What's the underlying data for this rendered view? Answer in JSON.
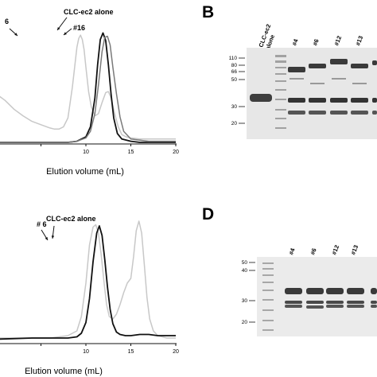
{
  "panels": {
    "A": {
      "letter": ""
    },
    "B": {
      "letter": "B"
    },
    "C": {
      "letter": ""
    },
    "D": {
      "letter": "D"
    }
  },
  "chart_data": [
    {
      "type": "line",
      "xlabel": "Elution volume (mL)",
      "ylabel": "",
      "xlim": [
        0,
        20
      ],
      "xticks": [
        {
          "value": 5,
          "label": ""
        },
        {
          "value": 10,
          "label": "10"
        },
        {
          "value": 15,
          "label": "15"
        },
        {
          "value": 20,
          "label": "20"
        }
      ],
      "annotations": [
        {
          "text": "6",
          "x": 9.5
        },
        {
          "text": "CLC-ec2 alone",
          "x": 11.8
        },
        {
          "text": "#16",
          "x": 12.4
        }
      ],
      "series": [
        {
          "label": "#6",
          "color": "#c8c8c8",
          "x": [
            0,
            1,
            2,
            3,
            4,
            5,
            6,
            6.5,
            7,
            7.5,
            8,
            8.5,
            9,
            9.2,
            9.4,
            9.6,
            9.8,
            10,
            10.3,
            10.6,
            11,
            11.4,
            11.8,
            12.2,
            12.5,
            12.8,
            13.2,
            13.6,
            14,
            14.5,
            15,
            16,
            17,
            18,
            19,
            20
          ],
          "y": [
            0.44,
            0.38,
            0.3,
            0.24,
            0.19,
            0.16,
            0.13,
            0.12,
            0.12,
            0.14,
            0.22,
            0.5,
            0.86,
            0.94,
            0.97,
            0.93,
            0.84,
            0.68,
            0.46,
            0.32,
            0.24,
            0.26,
            0.36,
            0.45,
            0.46,
            0.4,
            0.26,
            0.14,
            0.07,
            0.05,
            0.04,
            0.03,
            0.03,
            0.03,
            0.03,
            0.03
          ]
        },
        {
          "label": "CLC-ec2 alone",
          "color": "#111111",
          "x": [
            0,
            5,
            8,
            9,
            10,
            10.5,
            11,
            11.3,
            11.6,
            11.9,
            12.2,
            12.5,
            12.8,
            13.1,
            13.5,
            14,
            15,
            16,
            18,
            20
          ],
          "y": [
            0.0,
            0.0,
            0.0,
            0.01,
            0.05,
            0.14,
            0.4,
            0.7,
            0.93,
            0.99,
            0.92,
            0.7,
            0.44,
            0.22,
            0.08,
            0.03,
            0.01,
            0.0,
            0.0,
            0.0
          ]
        },
        {
          "label": "#16",
          "color": "#7a7a7a",
          "x": [
            0,
            5,
            8,
            9,
            10,
            10.5,
            11,
            11.4,
            11.8,
            12.1,
            12.4,
            12.7,
            13.0,
            13.4,
            13.8,
            14.2,
            15,
            16,
            17,
            18,
            20
          ],
          "y": [
            0.0,
            0.0,
            0.0,
            0.01,
            0.04,
            0.1,
            0.26,
            0.52,
            0.82,
            0.95,
            0.96,
            0.88,
            0.68,
            0.44,
            0.23,
            0.1,
            0.03,
            0.02,
            0.01,
            0.01,
            0.01
          ]
        }
      ]
    },
    {
      "type": "line",
      "xlabel": "Elution volume (mL)",
      "ylabel": "",
      "xlim": [
        0,
        20
      ],
      "xticks": [
        {
          "value": 5,
          "label": ""
        },
        {
          "value": 10,
          "label": "10"
        },
        {
          "value": 15,
          "label": "15"
        },
        {
          "value": 20,
          "label": "20"
        }
      ],
      "annotations": [
        {
          "text": "# 6",
          "x": 10.9
        },
        {
          "text": "CLC-ec2 alone",
          "x": 11.7
        }
      ],
      "series": [
        {
          "label": "# 6",
          "color": "#c8c8c8",
          "x": [
            0,
            1,
            2,
            3,
            4,
            5,
            6,
            7,
            8,
            9,
            9.5,
            10,
            10.4,
            10.8,
            11.1,
            11.4,
            11.7,
            12,
            12.3,
            12.6,
            13,
            13.4,
            13.8,
            14.2,
            14.6,
            15,
            15.3,
            15.6,
            15.9,
            16.2,
            16.5,
            16.8,
            17.1,
            17.5,
            18,
            18.5,
            19,
            20
          ],
          "y": [
            0.02,
            0.02,
            0.02,
            0.02,
            0.02,
            0.02,
            0.02,
            0.03,
            0.04,
            0.08,
            0.2,
            0.48,
            0.8,
            0.95,
            0.97,
            0.9,
            0.72,
            0.5,
            0.3,
            0.2,
            0.18,
            0.22,
            0.3,
            0.4,
            0.48,
            0.52,
            0.7,
            0.92,
            1.0,
            0.9,
            0.64,
            0.36,
            0.18,
            0.08,
            0.04,
            0.03,
            0.02,
            0.02
          ]
        },
        {
          "label": "CLC-ec2 alone",
          "color": "#111111",
          "x": [
            0,
            4,
            6,
            8,
            9,
            9.5,
            10,
            10.4,
            10.8,
            11.2,
            11.5,
            11.8,
            12.1,
            12.4,
            12.7,
            13,
            13.4,
            13.8,
            14.4,
            15,
            16,
            17,
            18,
            20
          ],
          "y": [
            0.01,
            0.02,
            0.02,
            0.02,
            0.03,
            0.06,
            0.15,
            0.35,
            0.66,
            0.9,
            0.96,
            0.88,
            0.68,
            0.45,
            0.26,
            0.14,
            0.07,
            0.05,
            0.04,
            0.04,
            0.05,
            0.05,
            0.04,
            0.04
          ]
        }
      ]
    }
  ],
  "gel_B": {
    "header_lane": "CLC-ec2 alone",
    "header_lane_lines": [
      "CLC-ec2",
      "alone"
    ],
    "lane_labels": [
      "#4",
      "#6",
      "#12",
      "#13"
    ],
    "mw_markers": [
      "110",
      "80",
      "66",
      "50",
      "30",
      "20"
    ]
  },
  "gel_D": {
    "lane_labels": [
      "#4",
      "#6",
      "#12",
      "#13"
    ],
    "mw_markers": [
      "50",
      "40",
      "30",
      "20"
    ]
  }
}
